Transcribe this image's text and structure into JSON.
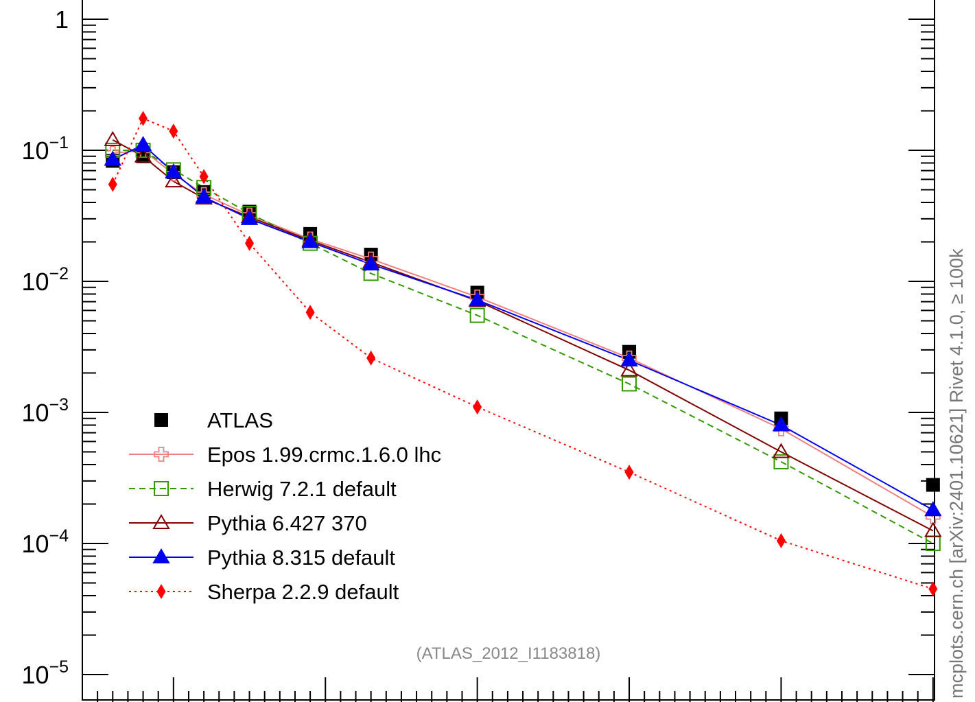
{
  "chart_data": {
    "type": "line",
    "title": "",
    "xlabel": "",
    "ylabel": "",
    "log_y": true,
    "ylim": [
      8e-06,
      2.0
    ],
    "xlim": [
      0,
      1.1
    ],
    "grid": false,
    "legend_position": "bottom-left",
    "y_tick_labels": [
      {
        "value": 1,
        "base": "1",
        "exp": ""
      },
      {
        "value": 0.1,
        "base": "10",
        "exp": "−1"
      },
      {
        "value": 0.01,
        "base": "10",
        "exp": "−2"
      },
      {
        "value": 0.001,
        "base": "10",
        "exp": "−3"
      },
      {
        "value": 0.0001,
        "base": "10",
        "exp": "−4"
      },
      {
        "value": 1e-05,
        "base": "10",
        "exp": "−5"
      }
    ],
    "x": [
      0.04,
      0.08,
      0.12,
      0.16,
      0.22,
      0.3,
      0.38,
      0.52,
      0.72,
      0.92,
      1.12
    ],
    "series": [
      {
        "name": "ATLAS",
        "color": "#000000",
        "marker": "square-filled",
        "line": "none",
        "values": [
          0.083,
          0.09,
          0.068,
          0.048,
          0.034,
          0.023,
          0.016,
          0.0082,
          0.0029,
          0.0009,
          0.00028
        ]
      },
      {
        "name": "Epos 1.99.crmc.1.6.0 lhc",
        "color": "#f08080",
        "marker": "cross-open",
        "line": "solid",
        "values": [
          0.095,
          0.1,
          0.066,
          0.046,
          0.032,
          0.021,
          0.0148,
          0.0076,
          0.0026,
          0.00075,
          0.00016
        ]
      },
      {
        "name": "Herwig 7.2.1 default",
        "color": "#339900",
        "marker": "square-open",
        "line": "dashed",
        "values": [
          0.1,
          0.1,
          0.071,
          0.052,
          0.033,
          0.0195,
          0.0115,
          0.0055,
          0.00165,
          0.00042,
          0.0001
        ]
      },
      {
        "name": "Pythia 6.427 370",
        "color": "#800000",
        "marker": "triangle-open",
        "line": "solid",
        "values": [
          0.12,
          0.09,
          0.058,
          0.043,
          0.031,
          0.0205,
          0.014,
          0.0071,
          0.0021,
          0.0005,
          0.000125
        ]
      },
      {
        "name": "Pythia 8.315 default",
        "color": "#0000ee",
        "marker": "triangle-filled",
        "line": "solid",
        "values": [
          0.085,
          0.11,
          0.068,
          0.044,
          0.03,
          0.02,
          0.0135,
          0.0072,
          0.0025,
          0.0008,
          0.00018
        ]
      },
      {
        "name": "Sherpa 2.2.9 default",
        "color": "#ff0000",
        "marker": "diamond-filled",
        "line": "dotted",
        "values": [
          0.055,
          0.175,
          0.14,
          0.063,
          0.0195,
          0.0058,
          0.0026,
          0.0011,
          0.00035,
          0.000105,
          4.5e-05
        ]
      }
    ]
  },
  "annotations": {
    "analysis_id": "(ATLAS_2012_I1183818)",
    "side_text": "mcplots.cern.ch [arXiv:2401.10621]    Rivet 4.1.0, ≥ 100k"
  }
}
